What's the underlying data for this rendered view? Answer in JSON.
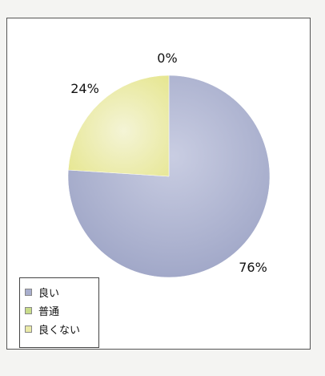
{
  "chart_data": {
    "type": "pie",
    "categories": [
      "良い",
      "普通",
      "良くない"
    ],
    "values": [
      76,
      0,
      24
    ],
    "data_labels": [
      "76%",
      "0%",
      "24%"
    ],
    "colors": [
      "#a8aecd",
      "#c8dc8a",
      "#eaeaa8"
    ],
    "legend_position": "bottom-left",
    "title": ""
  }
}
